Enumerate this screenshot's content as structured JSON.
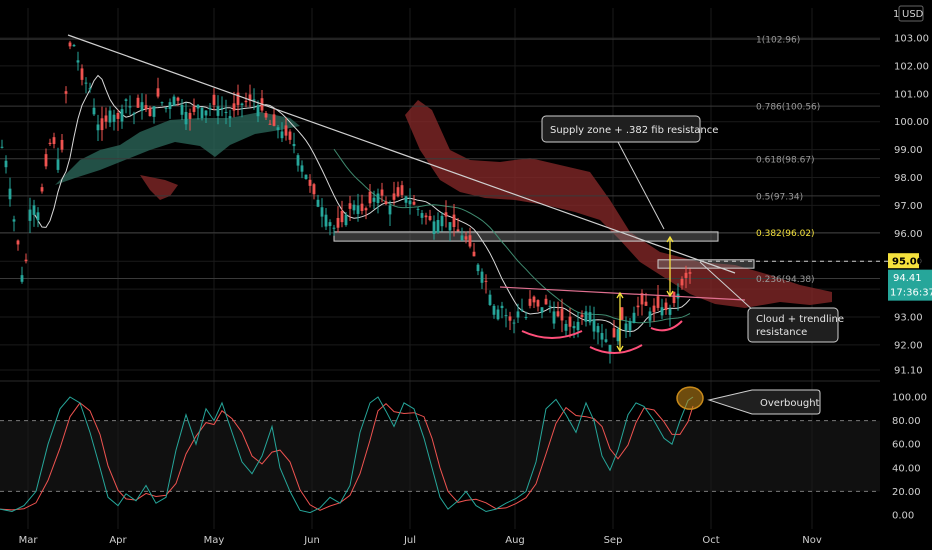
{
  "header": {
    "interval": "1",
    "currency": "USD"
  },
  "colors": {
    "background": "#000000",
    "grid": "#1a1a1a",
    "candle_up": "#26a69a",
    "candle_down": "#ef5350",
    "cloud_bull": "#2e6b5e",
    "cloud_bear": "#8a2a2a",
    "fib": "#ffffff",
    "stoch_k": "#26a69a",
    "stoch_d": "#ef5350",
    "current_price_bg": "#26a69a",
    "level_price_bg": "#f5e23d",
    "annotation_bg": "#1f1f1f",
    "annotation_border": "#cfcfcf",
    "arc": "#ff4f7a",
    "arrow": "#f5e23d",
    "circle": "#c98a1a"
  },
  "chart_data": [
    {
      "type": "candlestick",
      "price_axis_ticks": [
        "103.00",
        "102.00",
        "101.00",
        "100.00",
        "99.00",
        "98.00",
        "97.00",
        "96.00",
        "95.00",
        "94.00",
        "93.00",
        "92.00",
        "91.10"
      ],
      "time_axis_ticks": [
        "Mar",
        "Apr",
        "May",
        "Jun",
        "Jul",
        "Aug",
        "Sep",
        "Oct",
        "Nov"
      ],
      "ylim": [
        90.8,
        103.6
      ],
      "y_log": false,
      "grid": true,
      "current_price": "94.41",
      "countdown": "17:36:37",
      "level_price": "95.00",
      "fib_levels": [
        {
          "label": "1(102.96)",
          "value": 102.96
        },
        {
          "label": "0.786(100.56)",
          "value": 100.56
        },
        {
          "label": "0.618(98.67)",
          "value": 98.67
        },
        {
          "label": "0.5(97.34)",
          "value": 97.34
        },
        {
          "label": "0.382(96.02)",
          "value": 96.02
        },
        {
          "label": "0.236(94.38)",
          "value": 94.38
        }
      ],
      "annotations": [
        {
          "id": "supply",
          "text": "Supply zone + .382 fib resistance"
        },
        {
          "id": "cloud",
          "lines": [
            "Cloud + trendline",
            "resistance"
          ]
        }
      ]
    },
    {
      "type": "line",
      "name": "stochastic",
      "axis_ticks": [
        "100.00",
        "80.00",
        "60.00",
        "40.00",
        "20.00",
        "0.00"
      ],
      "ylim": [
        -6,
        108
      ],
      "levels": [
        80,
        20
      ],
      "annotation": "Overbought"
    }
  ]
}
